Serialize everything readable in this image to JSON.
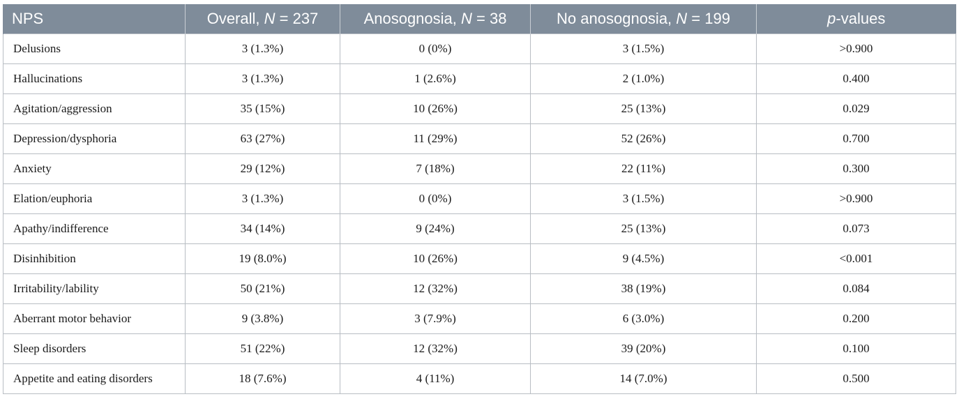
{
  "table": {
    "headers": [
      {
        "label": "NPS"
      },
      {
        "pre": "Overall, ",
        "italic": "N",
        "post": " = 237"
      },
      {
        "pre": "Anosognosia, ",
        "italic": "N",
        "post": " = 38"
      },
      {
        "pre": "No anosognosia, ",
        "italic": "N",
        "post": " = 199"
      },
      {
        "pre": "",
        "italic": "p",
        "post": "-values"
      }
    ],
    "rows": [
      [
        "Delusions",
        "3 (1.3%)",
        "0 (0%)",
        "3 (1.5%)",
        ">0.900"
      ],
      [
        "Hallucinations",
        "3 (1.3%)",
        "1 (2.6%)",
        "2 (1.0%)",
        "0.400"
      ],
      [
        "Agitation/aggression",
        "35 (15%)",
        "10 (26%)",
        "25 (13%)",
        "0.029"
      ],
      [
        "Depression/dysphoria",
        "63 (27%)",
        "11 (29%)",
        "52 (26%)",
        "0.700"
      ],
      [
        "Anxiety",
        "29 (12%)",
        "7 (18%)",
        "22 (11%)",
        "0.300"
      ],
      [
        "Elation/euphoria",
        "3 (1.3%)",
        "0 (0%)",
        "3 (1.5%)",
        ">0.900"
      ],
      [
        "Apathy/indifference",
        "34 (14%)",
        "9 (24%)",
        "25 (13%)",
        "0.073"
      ],
      [
        "Disinhibition",
        "19 (8.0%)",
        "10 (26%)",
        "9 (4.5%)",
        "<0.001"
      ],
      [
        "Irritability/lability",
        "50 (21%)",
        "12 (32%)",
        "38 (19%)",
        "0.084"
      ],
      [
        "Aberrant motor behavior",
        "9 (3.8%)",
        "3 (7.9%)",
        "6 (3.0%)",
        "0.200"
      ],
      [
        "Sleep disorders",
        "51 (22%)",
        "12 (32%)",
        "39 (20%)",
        "0.100"
      ],
      [
        "Appetite and eating disorders",
        "18 (7.6%)",
        "4 (11%)",
        "14 (7.0%)",
        "0.500"
      ]
    ]
  }
}
